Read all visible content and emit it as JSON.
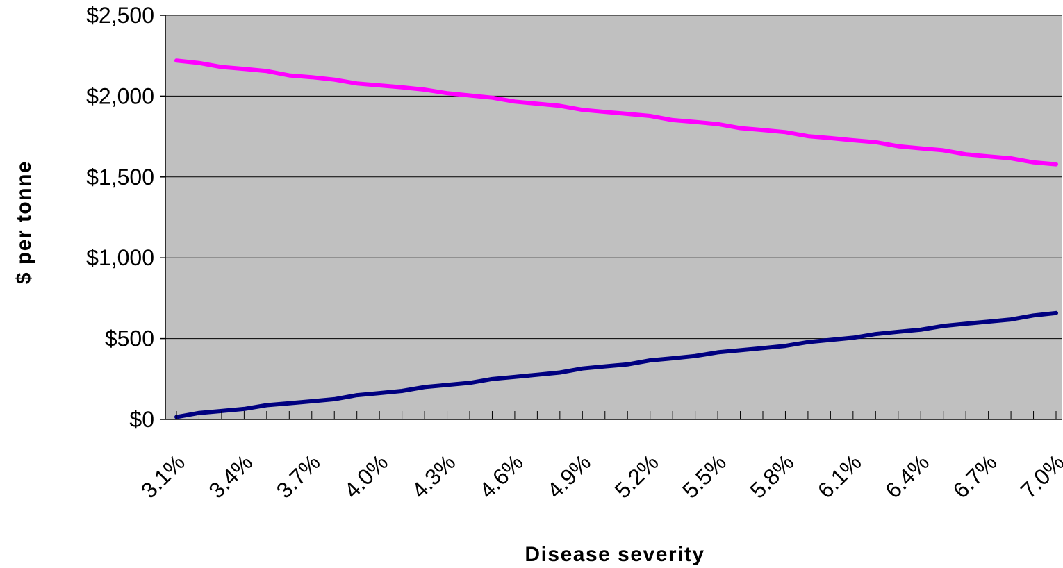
{
  "chart_data": {
    "type": "line",
    "title": "",
    "xlabel": "Disease severity",
    "ylabel": "$ per tonne",
    "x_tick_labels": [
      "3.1%",
      "3.4%",
      "3.7%",
      "4.0%",
      "4.3%",
      "4.6%",
      "4.9%",
      "5.2%",
      "5.5%",
      "5.8%",
      "6.1%",
      "6.4%",
      "6.7%",
      "7.0%"
    ],
    "y_tick_labels": [
      "$0",
      "$500",
      "$1,000",
      "$1,500",
      "$2,000",
      "$2,500"
    ],
    "y_ticks": [
      0,
      500,
      1000,
      1500,
      2000,
      2500
    ],
    "ylim": [
      0,
      2500
    ],
    "xlim": [
      3.1,
      7.0
    ],
    "x_step": 0.1,
    "grid": "horizontal",
    "legend": "none",
    "plot_background": "#c0c0c0",
    "series": [
      {
        "color": "#ff00ff",
        "x": [
          3.1,
          3.2,
          3.3,
          3.4,
          3.5,
          3.6,
          3.7,
          3.8,
          3.9,
          4.0,
          4.1,
          4.2,
          4.3,
          4.4,
          4.5,
          4.6,
          4.7,
          4.8,
          4.9,
          5.0,
          5.1,
          5.2,
          5.3,
          5.4,
          5.5,
          5.6,
          5.7,
          5.8,
          5.9,
          6.0,
          6.1,
          6.2,
          6.3,
          6.4,
          6.5,
          6.6,
          6.7,
          6.8,
          6.9,
          7.0
        ],
        "values": [
          2220,
          2205,
          2180,
          2168,
          2155,
          2128,
          2117,
          2102,
          2078,
          2066,
          2054,
          2040,
          2018,
          2004,
          1990,
          1966,
          1953,
          1940,
          1915,
          1902,
          1890,
          1877,
          1852,
          1840,
          1827,
          1802,
          1790,
          1777,
          1752,
          1740,
          1727,
          1715,
          1690,
          1677,
          1665,
          1640,
          1627,
          1615,
          1590,
          1578
        ]
      },
      {
        "color": "#000080",
        "x": [
          3.1,
          3.2,
          3.3,
          3.4,
          3.5,
          3.6,
          3.7,
          3.8,
          3.9,
          4.0,
          4.1,
          4.2,
          4.3,
          4.4,
          4.5,
          4.6,
          4.7,
          4.8,
          4.9,
          5.0,
          5.1,
          5.2,
          5.3,
          5.4,
          5.5,
          5.6,
          5.7,
          5.8,
          5.9,
          6.0,
          6.1,
          6.2,
          6.3,
          6.4,
          6.5,
          6.6,
          6.7,
          6.8,
          6.9,
          7.0
        ],
        "values": [
          15,
          40,
          52,
          65,
          88,
          100,
          112,
          125,
          150,
          163,
          176,
          200,
          213,
          226,
          250,
          263,
          276,
          290,
          315,
          328,
          340,
          365,
          378,
          392,
          415,
          428,
          441,
          455,
          478,
          492,
          505,
          528,
          542,
          555,
          578,
          592,
          605,
          618,
          643,
          658
        ]
      }
    ]
  }
}
